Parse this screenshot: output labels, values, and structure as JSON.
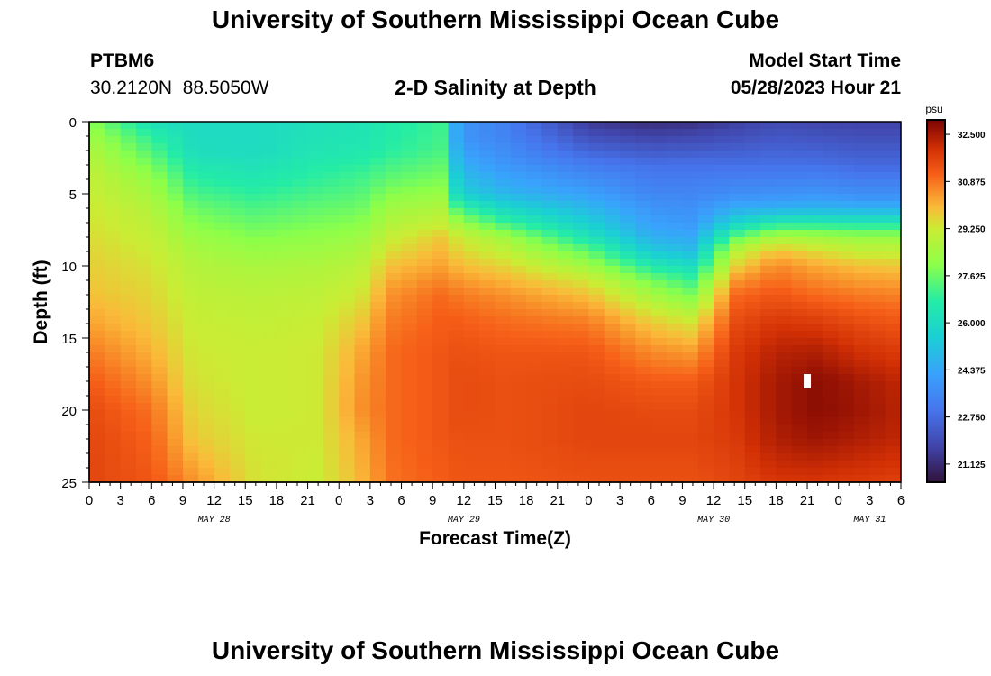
{
  "header": {
    "title": "University of Southern Mississippi Ocean Cube",
    "station_id": "PTBM6",
    "station_coords": "30.2120N  88.5050W",
    "chart_title": "2-D Salinity at Depth",
    "model_label": "Model Start Time",
    "model_time": "05/28/2023 Hour 21"
  },
  "footer": {
    "title": "University of Southern Mississippi Ocean Cube"
  },
  "chart_data": {
    "type": "heatmap",
    "title": "2-D Salinity at Depth",
    "xlabel": "Forecast Time(Z)",
    "ylabel": "Depth (ft)",
    "x_tick_labels": [
      "0",
      "3",
      "6",
      "9",
      "12",
      "15",
      "18",
      "21",
      "0",
      "3",
      "6",
      "9",
      "12",
      "15",
      "18",
      "21",
      "0",
      "3",
      "6",
      "9",
      "12",
      "15",
      "18",
      "21",
      "0",
      "3",
      "6"
    ],
    "x_day_labels": [
      {
        "label": "MAY 28",
        "hour": 12
      },
      {
        "label": "MAY 29",
        "hour": 36
      },
      {
        "label": "MAY 30",
        "hour": 60
      },
      {
        "label": "MAY 31",
        "hour": 75
      }
    ],
    "x_range_hours": [
      0,
      78
    ],
    "y_tick_labels": [
      "0",
      "5",
      "10",
      "15",
      "20",
      "25"
    ],
    "y_range_ft": [
      0,
      25
    ],
    "colorbar": {
      "unit": "psu",
      "tick_labels": [
        "32.500",
        "30.875",
        "29.250",
        "27.625",
        "26.000",
        "24.375",
        "22.750",
        "21.125"
      ],
      "tick_values": [
        32.5,
        30.875,
        29.25,
        27.625,
        26.0,
        24.375,
        22.75,
        21.125
      ],
      "range": [
        20.5,
        33.0
      ]
    },
    "marker": {
      "hour": 69,
      "depth_ft": 18
    },
    "grid_step": {
      "hour": 1.5,
      "depth_ft": 0.5
    },
    "salinity_profiles": [
      {
        "hour": 0,
        "depths": [
          0,
          1,
          2,
          4,
          6,
          8,
          10,
          12,
          14,
          16,
          18,
          20,
          22,
          25
        ],
        "values": [
          28.0,
          28.4,
          28.7,
          29.1,
          29.3,
          29.5,
          29.7,
          29.9,
          30.3,
          30.8,
          31.2,
          31.5,
          31.6,
          31.6
        ]
      },
      {
        "hour": 6,
        "depths": [
          0,
          1,
          2,
          4,
          6,
          8,
          10,
          12,
          14,
          16,
          18,
          20,
          22,
          25
        ],
        "values": [
          26.2,
          26.8,
          27.3,
          28.2,
          28.8,
          29.1,
          29.4,
          29.6,
          29.8,
          30.1,
          30.5,
          30.9,
          31.1,
          31.3
        ]
      },
      {
        "hour": 10,
        "depths": [
          0,
          2,
          4,
          6,
          8,
          10,
          12,
          14,
          16,
          18,
          20,
          22,
          25
        ],
        "values": [
          26.0,
          26.1,
          26.8,
          27.6,
          28.3,
          28.8,
          29.0,
          29.2,
          29.3,
          29.4,
          29.6,
          29.8,
          30.5
        ]
      },
      {
        "hour": 16,
        "depths": [
          0,
          2,
          4,
          6,
          8,
          10,
          12,
          14,
          16,
          18,
          20,
          22,
          25
        ],
        "values": [
          26.0,
          26.0,
          26.5,
          27.2,
          27.9,
          28.6,
          28.9,
          29.1,
          29.2,
          29.2,
          29.2,
          29.3,
          29.4
        ]
      },
      {
        "hour": 22,
        "depths": [
          0,
          2,
          4,
          6,
          8,
          10,
          12,
          14,
          16,
          18,
          20,
          22,
          25
        ],
        "values": [
          26.2,
          26.4,
          26.9,
          27.5,
          28.1,
          28.7,
          29.0,
          29.2,
          29.3,
          29.3,
          29.3,
          29.3,
          29.2
        ]
      },
      {
        "hour": 26,
        "depths": [
          0,
          2,
          4,
          6,
          8,
          10,
          12,
          14,
          16,
          18,
          20,
          22,
          25
        ],
        "values": [
          26.3,
          26.5,
          27.1,
          27.6,
          28.3,
          28.9,
          29.3,
          29.8,
          30.2,
          30.4,
          30.5,
          30.2,
          30.0
        ]
      },
      {
        "hour": 29,
        "depths": [
          0,
          2,
          4,
          6,
          8,
          10,
          12,
          14,
          16,
          18,
          20,
          22,
          25
        ],
        "values": [
          26.6,
          26.8,
          27.5,
          28.4,
          29.1,
          29.9,
          30.5,
          30.8,
          31.0,
          31.0,
          31.0,
          31.0,
          30.9
        ]
      },
      {
        "hour": 34,
        "depths": [
          0,
          2,
          4,
          6,
          7,
          8,
          10,
          12,
          14,
          16,
          18,
          20,
          22,
          25
        ],
        "values": [
          27.0,
          27.2,
          27.8,
          28.7,
          29.1,
          29.8,
          30.3,
          31.0,
          31.2,
          31.3,
          31.3,
          31.3,
          31.3,
          31.2
        ]
      },
      {
        "hour": 35.5,
        "depths": [
          0,
          1,
          3,
          5,
          6,
          7,
          8,
          10,
          12,
          14,
          16,
          18,
          20,
          22,
          25
        ],
        "values": [
          24.0,
          23.9,
          24.6,
          25.6,
          27.0,
          28.3,
          29.2,
          30.0,
          30.8,
          31.2,
          31.4,
          31.5,
          31.5,
          31.4,
          31.3
        ]
      },
      {
        "hour": 40,
        "depths": [
          0,
          1,
          3,
          5,
          6,
          7,
          8,
          10,
          12,
          14,
          16,
          18,
          20,
          22,
          25
        ],
        "values": [
          23.3,
          23.4,
          23.9,
          24.8,
          25.8,
          27.0,
          28.4,
          29.6,
          30.5,
          31.0,
          31.3,
          31.4,
          31.4,
          31.4,
          31.3
        ]
      },
      {
        "hour": 48,
        "depths": [
          0,
          1,
          3,
          5,
          7,
          8,
          9,
          10,
          11,
          12,
          14,
          16,
          18,
          20,
          22,
          25
        ],
        "values": [
          21.5,
          22.0,
          23.2,
          24.2,
          25.5,
          26.3,
          27.5,
          28.4,
          29.3,
          29.9,
          30.8,
          31.3,
          31.5,
          31.6,
          31.6,
          31.4
        ]
      },
      {
        "hour": 54,
        "depths": [
          0,
          1,
          3,
          5,
          7,
          8,
          9,
          10,
          11,
          12,
          13,
          14,
          16,
          18,
          20,
          22,
          25
        ],
        "values": [
          21.2,
          21.7,
          22.9,
          23.5,
          24.2,
          24.6,
          25.4,
          26.6,
          27.7,
          28.5,
          29.2,
          29.8,
          30.6,
          31.2,
          31.5,
          31.6,
          31.4
        ]
      },
      {
        "hour": 58,
        "depths": [
          0,
          1,
          3,
          5,
          7,
          8,
          9,
          10,
          11,
          12,
          13,
          14,
          16,
          18,
          20,
          22,
          25
        ],
        "values": [
          21.3,
          21.8,
          22.9,
          23.5,
          24.0,
          24.4,
          25.0,
          26.0,
          27.0,
          27.8,
          28.6,
          29.4,
          30.4,
          31.2,
          31.5,
          31.6,
          31.4
        ]
      },
      {
        "hour": 62,
        "depths": [
          0,
          1,
          3,
          5,
          6,
          7,
          8,
          9,
          10,
          11,
          12,
          14,
          16,
          18,
          20,
          22,
          25
        ],
        "values": [
          21.6,
          22.0,
          22.9,
          23.7,
          24.5,
          25.7,
          27.4,
          28.9,
          29.6,
          30.4,
          31.0,
          31.5,
          31.8,
          31.9,
          31.9,
          31.8,
          31.6
        ]
      },
      {
        "hour": 66,
        "depths": [
          0,
          1,
          3,
          5,
          6,
          7,
          8,
          9,
          10,
          12,
          14,
          16,
          18,
          20,
          22,
          25
        ],
        "values": [
          21.9,
          22.2,
          22.9,
          23.8,
          24.6,
          26.6,
          28.6,
          29.9,
          30.6,
          31.3,
          31.9,
          32.3,
          32.5,
          32.5,
          32.4,
          31.9
        ]
      },
      {
        "hour": 70,
        "depths": [
          0,
          1,
          3,
          5,
          6,
          7,
          8,
          9,
          10,
          12,
          14,
          16,
          18,
          20,
          22,
          25
        ],
        "values": [
          21.8,
          22.1,
          22.9,
          23.9,
          24.7,
          26.6,
          28.4,
          29.5,
          30.2,
          31.0,
          31.8,
          32.4,
          32.8,
          32.8,
          32.6,
          31.9
        ]
      },
      {
        "hour": 74,
        "depths": [
          0,
          1,
          3,
          5,
          6,
          7,
          8,
          9,
          10,
          12,
          14,
          16,
          18,
          20,
          22,
          25
        ],
        "values": [
          21.7,
          22.0,
          22.7,
          23.7,
          24.6,
          26.5,
          28.2,
          29.1,
          29.9,
          30.8,
          31.5,
          32.0,
          32.5,
          32.6,
          32.4,
          31.8
        ]
      },
      {
        "hour": 78,
        "depths": [
          0,
          1,
          3,
          5,
          6,
          7,
          8,
          9,
          10,
          12,
          14,
          16,
          18,
          20,
          22,
          25
        ],
        "values": [
          21.7,
          22.0,
          22.7,
          23.7,
          24.6,
          26.5,
          28.2,
          29.1,
          29.8,
          30.7,
          31.3,
          31.8,
          32.2,
          32.3,
          32.2,
          31.7
        ]
      }
    ]
  }
}
